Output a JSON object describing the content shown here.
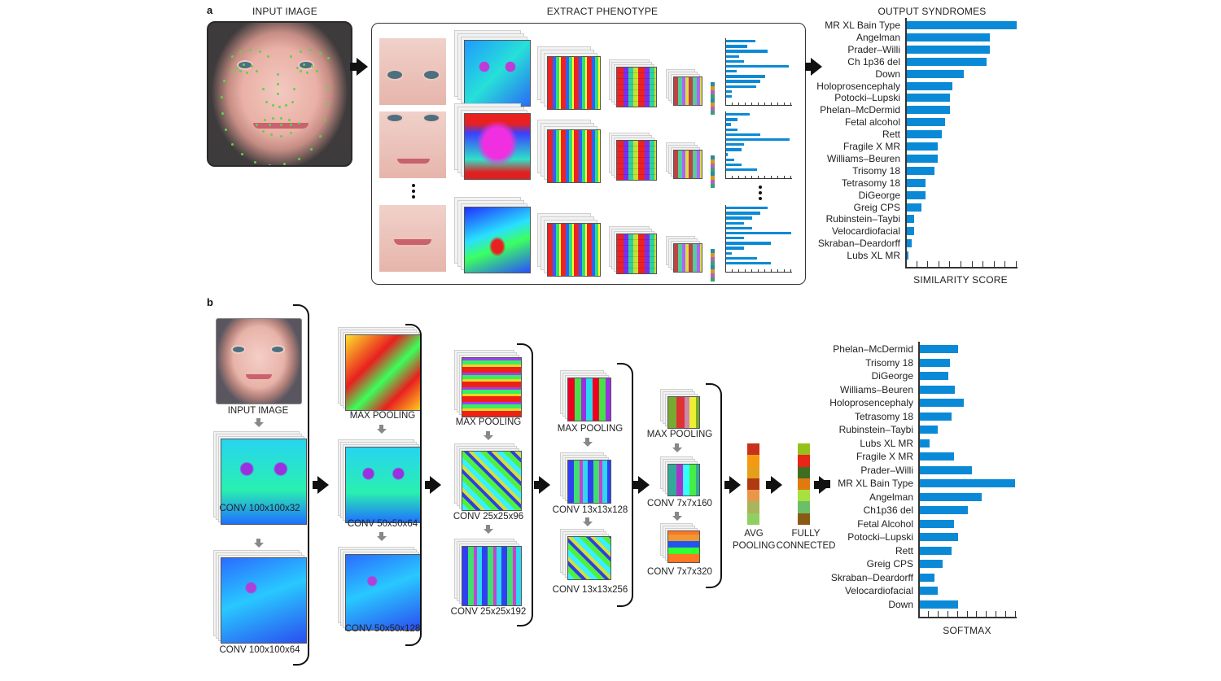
{
  "panel_a": {
    "letter": "a",
    "input_title": "INPUT IMAGE",
    "extract_title": "EXTRACT PHENOTYPE",
    "output_title": "OUTPUT SYNDROMES",
    "xlabel": "SIMILARITY SCORE"
  },
  "panel_b": {
    "letter": "b",
    "input_label": "INPUT IMAGE",
    "stage1": [
      "CONV 100x100x32",
      "CONV 100x100x64"
    ],
    "stage2": [
      "MAX POOLING",
      "CONV 50x50x64",
      "CONV 50x50x128"
    ],
    "stage3": [
      "MAX POOLING",
      "CONV 25x25x96",
      "CONV 25x25x192"
    ],
    "stage4": [
      "MAX POOLING",
      "CONV 13x13x128",
      "CONV 13x13x256"
    ],
    "stage5": [
      "MAX POOLING",
      "CONV 7x7x160",
      "CONV 7x7x320"
    ],
    "avg_pooling": [
      "AVG",
      "POOLING"
    ],
    "fully_connected": [
      "FULLY",
      "CONNECTED"
    ],
    "xlabel": "SOFTMAX"
  },
  "colors": {
    "bar": "#0a8ad6",
    "avg_pool_strip": [
      "#c8321a",
      "#f59a10",
      "#e3a01a",
      "#b23a10",
      "#e9964a",
      "#a9b55a",
      "#8fd060"
    ],
    "fc_strip": [
      "#95c21a",
      "#e82516",
      "#3e6e22",
      "#e07a10",
      "#a8e040",
      "#6bbf68",
      "#8a5a14"
    ]
  },
  "chart_data": [
    {
      "type": "bar",
      "orientation": "horizontal",
      "title": "OUTPUT SYNDROMES",
      "xlabel": "SIMILARITY SCORE",
      "ylabel": "",
      "xlim": [
        0,
        1
      ],
      "ticks_count": 10,
      "tick_labels": [],
      "categories": [
        "MR XL Bain Type",
        "Angelman",
        "Prader–Willi",
        "Ch 1p36 del",
        "Down",
        "Holoprosencephaly",
        "Potocki–Lupski",
        "Phelan–McDermid",
        "Fetal alcohol",
        "Rett",
        "Fragile X MR",
        "Williams–Beuren",
        "Trisomy 18",
        "Tetrasomy 18",
        "DiGeorge",
        "Greig CPS",
        "Rubinstein–Taybi",
        "Velocardiofacial",
        "Skraban–Deardorff",
        "Lubs XL MR"
      ],
      "values": [
        1.0,
        0.76,
        0.76,
        0.73,
        0.52,
        0.42,
        0.4,
        0.4,
        0.35,
        0.32,
        0.29,
        0.29,
        0.26,
        0.18,
        0.18,
        0.14,
        0.07,
        0.07,
        0.05,
        0.02
      ]
    },
    {
      "type": "bar",
      "orientation": "horizontal",
      "title": "",
      "xlabel": "SOFTMAX",
      "ylabel": "",
      "xlim": [
        0,
        1
      ],
      "ticks_count": 10,
      "tick_labels": [],
      "highlighted": "MR XL Bain Type",
      "categories": [
        "Phelan–McDermid",
        "Trisomy 18",
        "DiGeorge",
        "Williams–Beuren",
        "Holoprosencephaly",
        "Tetrasomy 18",
        "Rubinstein–Taybi",
        "Lubs XL MR",
        "Fragile X MR",
        "Prader–Willi",
        "MR XL Bain Type",
        "Angelman",
        "Ch1p36 del",
        "Fetal Alcohol",
        "Potocki–Lupski",
        "Rett",
        "Greig CPS",
        "Skraban–Deardorff",
        "Velocardiofacial",
        "Down"
      ],
      "values": [
        0.4,
        0.32,
        0.3,
        0.37,
        0.46,
        0.34,
        0.19,
        0.11,
        0.36,
        0.55,
        0.99,
        0.65,
        0.5,
        0.36,
        0.4,
        0.34,
        0.24,
        0.16,
        0.19,
        0.4
      ]
    },
    {
      "type": "bar",
      "orientation": "horizontal",
      "title": "phenotype vector (crop 1)",
      "xlim": [
        0,
        1
      ],
      "values": [
        0.45,
        0.33,
        0.64,
        0.2,
        0.28,
        0.96,
        0.16,
        0.6,
        0.53,
        0.46,
        0.09,
        0.09
      ]
    },
    {
      "type": "bar",
      "orientation": "horizontal",
      "title": "phenotype vector (crop 2)",
      "xlim": [
        0,
        1
      ],
      "values": [
        0.36,
        0.17,
        0.08,
        0.17,
        0.53,
        0.98,
        0.27,
        0.24,
        0.03,
        0.13,
        0.24,
        0.47
      ]
    },
    {
      "type": "bar",
      "orientation": "horizontal",
      "title": "phenotype vector (crop n)",
      "xlim": [
        0,
        1
      ],
      "values": [
        0.64,
        0.53,
        0.4,
        0.27,
        0.4,
        1.0,
        0.27,
        0.69,
        0.27,
        0.09,
        0.47,
        0.69
      ]
    }
  ]
}
